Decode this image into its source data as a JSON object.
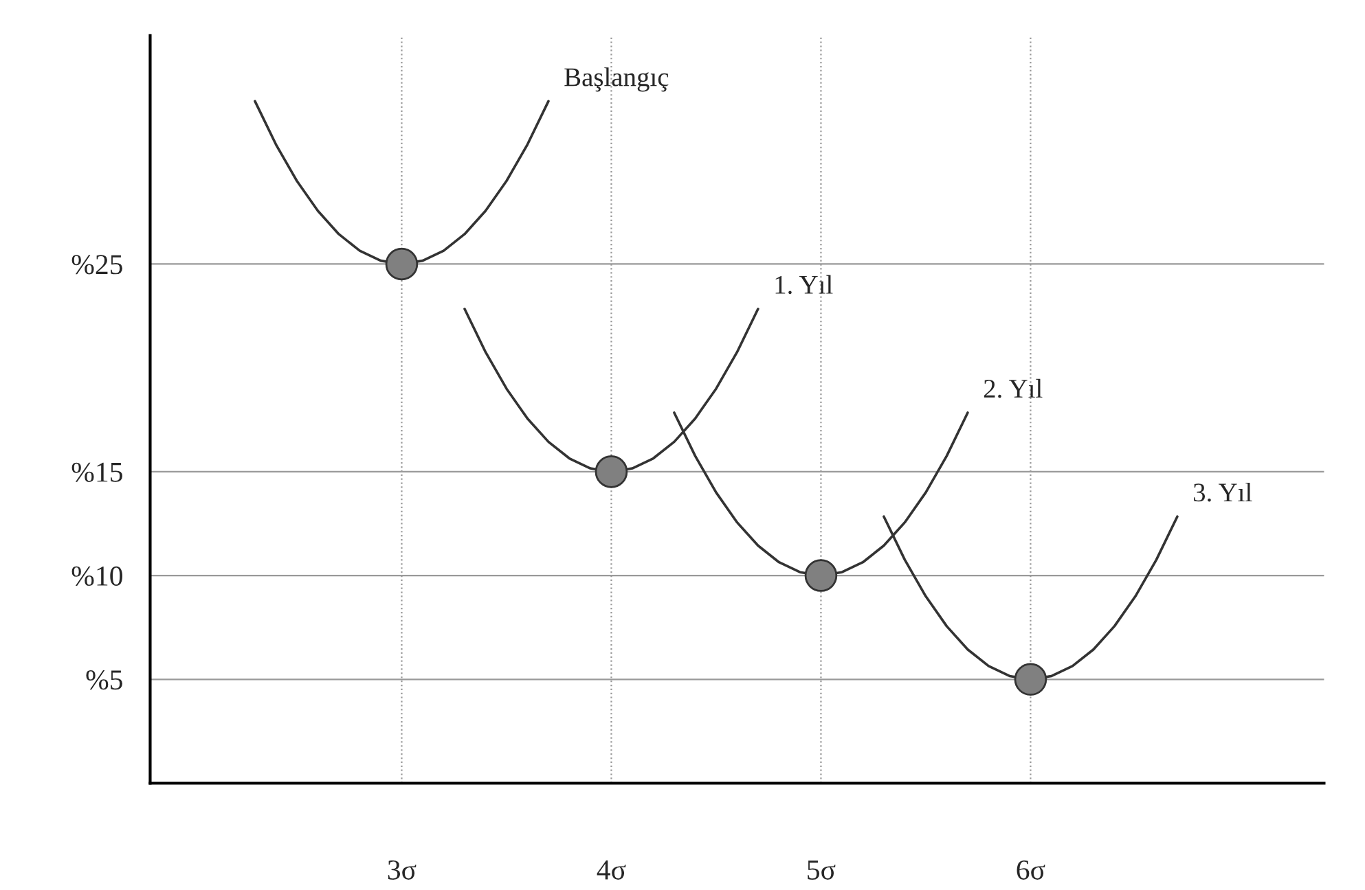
{
  "chart_data": {
    "type": "line",
    "series": [
      {
        "name": "Başlangıç",
        "color": "#333333",
        "marker": "none",
        "x": [
          2.3,
          2.4,
          2.5,
          2.6,
          2.7,
          2.8,
          2.9,
          3,
          3.1,
          3.2,
          3.3,
          3.4,
          3.5,
          3.6,
          3.7
        ],
        "values": [
          32.84,
          30.76,
          29,
          27.56,
          26.44,
          25.64,
          25.16,
          25,
          25.16,
          25.64,
          26.44,
          27.56,
          29,
          30.76,
          32.84
        ]
      },
      {
        "name": "1. Yıl",
        "color": "#333333",
        "marker": "none",
        "x": [
          3.3,
          3.4,
          3.5,
          3.6,
          3.7,
          3.8,
          3.9,
          4,
          4.1,
          4.2,
          4.3,
          4.4,
          4.5,
          4.6,
          4.7
        ],
        "values": [
          22.84,
          20.76,
          19,
          17.56,
          16.44,
          15.64,
          15.16,
          15,
          15.16,
          15.64,
          16.44,
          17.56,
          19,
          20.76,
          22.84
        ]
      },
      {
        "name": "2. Yıl",
        "color": "#333333",
        "marker": "none",
        "x": [
          4.3,
          4.4,
          4.5,
          4.6,
          4.7,
          4.8,
          4.9,
          5,
          5.1,
          5.2,
          5.3,
          5.4,
          5.5,
          5.6,
          5.7
        ],
        "values": [
          17.84,
          15.76,
          14,
          12.56,
          11.44,
          10.64,
          10.16,
          10,
          10.16,
          10.64,
          11.44,
          12.56,
          14,
          15.76,
          17.84
        ]
      },
      {
        "name": "3. Yıl",
        "color": "#333333",
        "marker": "none",
        "x": [
          5.3,
          5.4,
          5.5,
          5.6,
          5.7,
          5.8,
          5.9,
          6,
          6.1,
          6.2,
          6.3,
          6.4,
          6.5,
          6.6,
          6.7
        ],
        "values": [
          12.84,
          10.76,
          9,
          7.56,
          6.44,
          5.64,
          5.16,
          5,
          5.16,
          5.64,
          6.44,
          7.56,
          9,
          10.76,
          12.84
        ]
      },
      {
        "type": "scatter",
        "color": "#808080",
        "marker": "circle",
        "x": [
          3,
          4,
          5,
          6
        ],
        "values": [
          25,
          15,
          10,
          5
        ]
      }
    ],
    "xlim": [
      1.8,
      7.4
    ],
    "xticks": [
      {
        "value": 3,
        "label": "3σ"
      },
      {
        "value": 4,
        "label": "4σ"
      },
      {
        "value": 5,
        "label": "5σ"
      },
      {
        "value": 6,
        "label": "6σ"
      }
    ],
    "ylim": [
      0,
      36
    ],
    "yticks": [
      {
        "value": 5,
        "label": "%5"
      },
      {
        "value": 10,
        "label": "%10"
      },
      {
        "value": 15,
        "label": "%15"
      },
      {
        "value": 25,
        "label": "%25"
      }
    ],
    "grid": true
  }
}
